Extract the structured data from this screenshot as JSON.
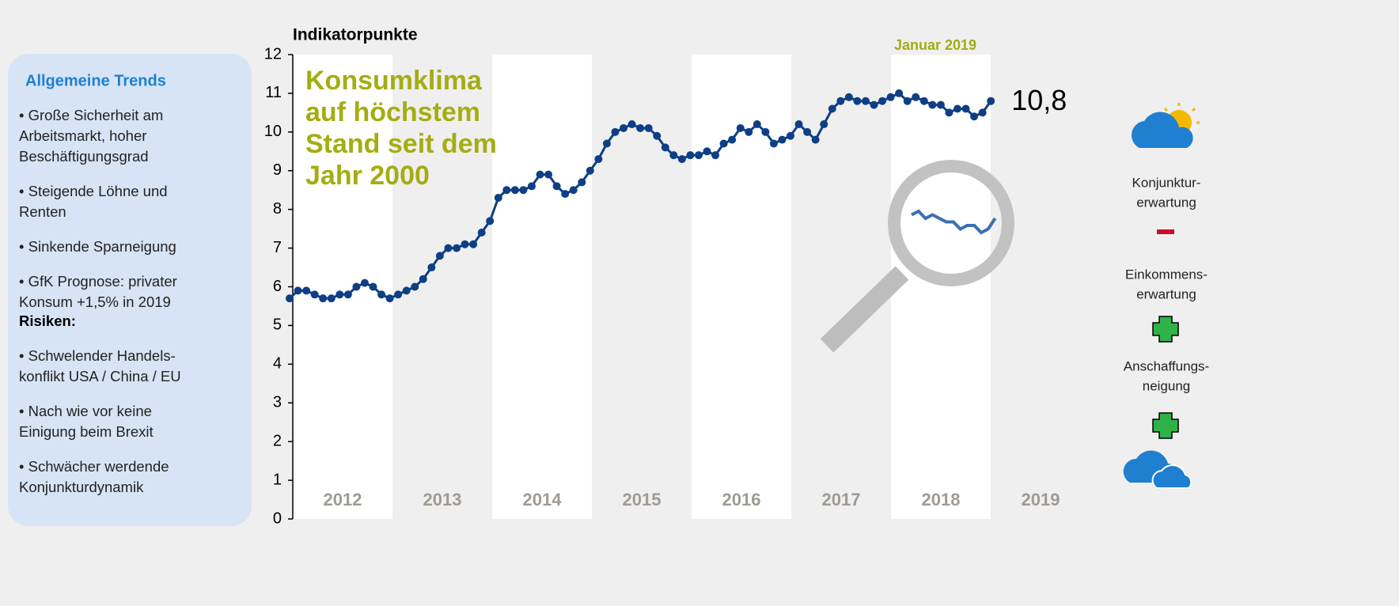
{
  "chart_data": {
    "type": "line",
    "y_label": "Indikatorpunkte",
    "headline": [
      "Konsumklima",
      "auf höchstem",
      "Stand seit dem",
      "Jahr 2000"
    ],
    "period_label": "Januar 2019",
    "year_labels": [
      "2012",
      "2013",
      "2014",
      "2015",
      "2016",
      "2017",
      "2018",
      "2019"
    ],
    "ylim": [
      0,
      12
    ],
    "yticks": [
      0,
      1,
      2,
      3,
      4,
      5,
      6,
      7,
      8,
      9,
      10,
      11,
      12
    ],
    "series": [
      {
        "color": "#0e3f86",
        "values": [
          5.7,
          5.9,
          5.9,
          5.8,
          5.7,
          5.7,
          5.8,
          5.8,
          6.0,
          6.1,
          6.0,
          5.8,
          5.7,
          5.8,
          5.9,
          6.0,
          6.2,
          6.5,
          6.8,
          7.0,
          7.0,
          7.1,
          7.1,
          7.4,
          7.7,
          8.3,
          8.5,
          8.5,
          8.5,
          8.6,
          8.9,
          8.9,
          8.6,
          8.4,
          8.5,
          8.7,
          9.0,
          9.3,
          9.7,
          10.0,
          10.1,
          10.2,
          10.1,
          10.1,
          9.9,
          9.6,
          9.4,
          9.3,
          9.4,
          9.4,
          9.5,
          9.4,
          9.7,
          9.8,
          10.1,
          10.0,
          10.2,
          10.0,
          9.7,
          9.8,
          9.9,
          10.2,
          10.0,
          9.8,
          10.2,
          10.6,
          10.8,
          10.9,
          10.8,
          10.8,
          10.7,
          10.8,
          10.9,
          11.0,
          10.8,
          10.9,
          10.8,
          10.7,
          10.7,
          10.5,
          10.6,
          10.6,
          10.4,
          10.5,
          10.8
        ],
        "value_labels": [
          null,
          null,
          null,
          null,
          null,
          null,
          null,
          null,
          null,
          null,
          null,
          null,
          null,
          null,
          null,
          null,
          null,
          null,
          null,
          null,
          null,
          null,
          null,
          null,
          null,
          null,
          null,
          null,
          null,
          null,
          null,
          null,
          null,
          null,
          null,
          null,
          null,
          null,
          null,
          null,
          null,
          null,
          null,
          null,
          null,
          null,
          null,
          null,
          null,
          null,
          null,
          null,
          null,
          null,
          null,
          null,
          null,
          null,
          null,
          null,
          null,
          null,
          null,
          null,
          null,
          null,
          null,
          null,
          null,
          null,
          null,
          null,
          null,
          null,
          null,
          null,
          null,
          null,
          null,
          null,
          null,
          null,
          null,
          null,
          "10,8"
        ]
      }
    ]
  },
  "sidebar": {
    "title": "Allgemeine Trends",
    "trends": [
      [
        "• Große Sicherheit am",
        "Arbeitsmarkt, hoher",
        "Beschäftigungsgrad"
      ],
      [
        "• Steigende Löhne und",
        "Renten"
      ],
      [
        "• Sinkende Sparneigung"
      ],
      [
        "• GfK Prognose: privater",
        "Konsum +1,5% in 2019"
      ]
    ],
    "risks_title": "Risiken:",
    "risks": [
      [
        "• Schwelender Handels-",
        "konflikt USA / China / EU"
      ],
      [
        "• Nach wie vor keine",
        "Einigung beim Brexit"
      ],
      [
        "• Schwächer werdende",
        "Konjunkturdynamik"
      ]
    ]
  },
  "indicators": [
    [
      "Konjunktur-",
      "erwartung"
    ],
    [
      "Einkommens-",
      "erwartung"
    ],
    [
      "Anschaffungs-",
      "neigung"
    ]
  ]
}
